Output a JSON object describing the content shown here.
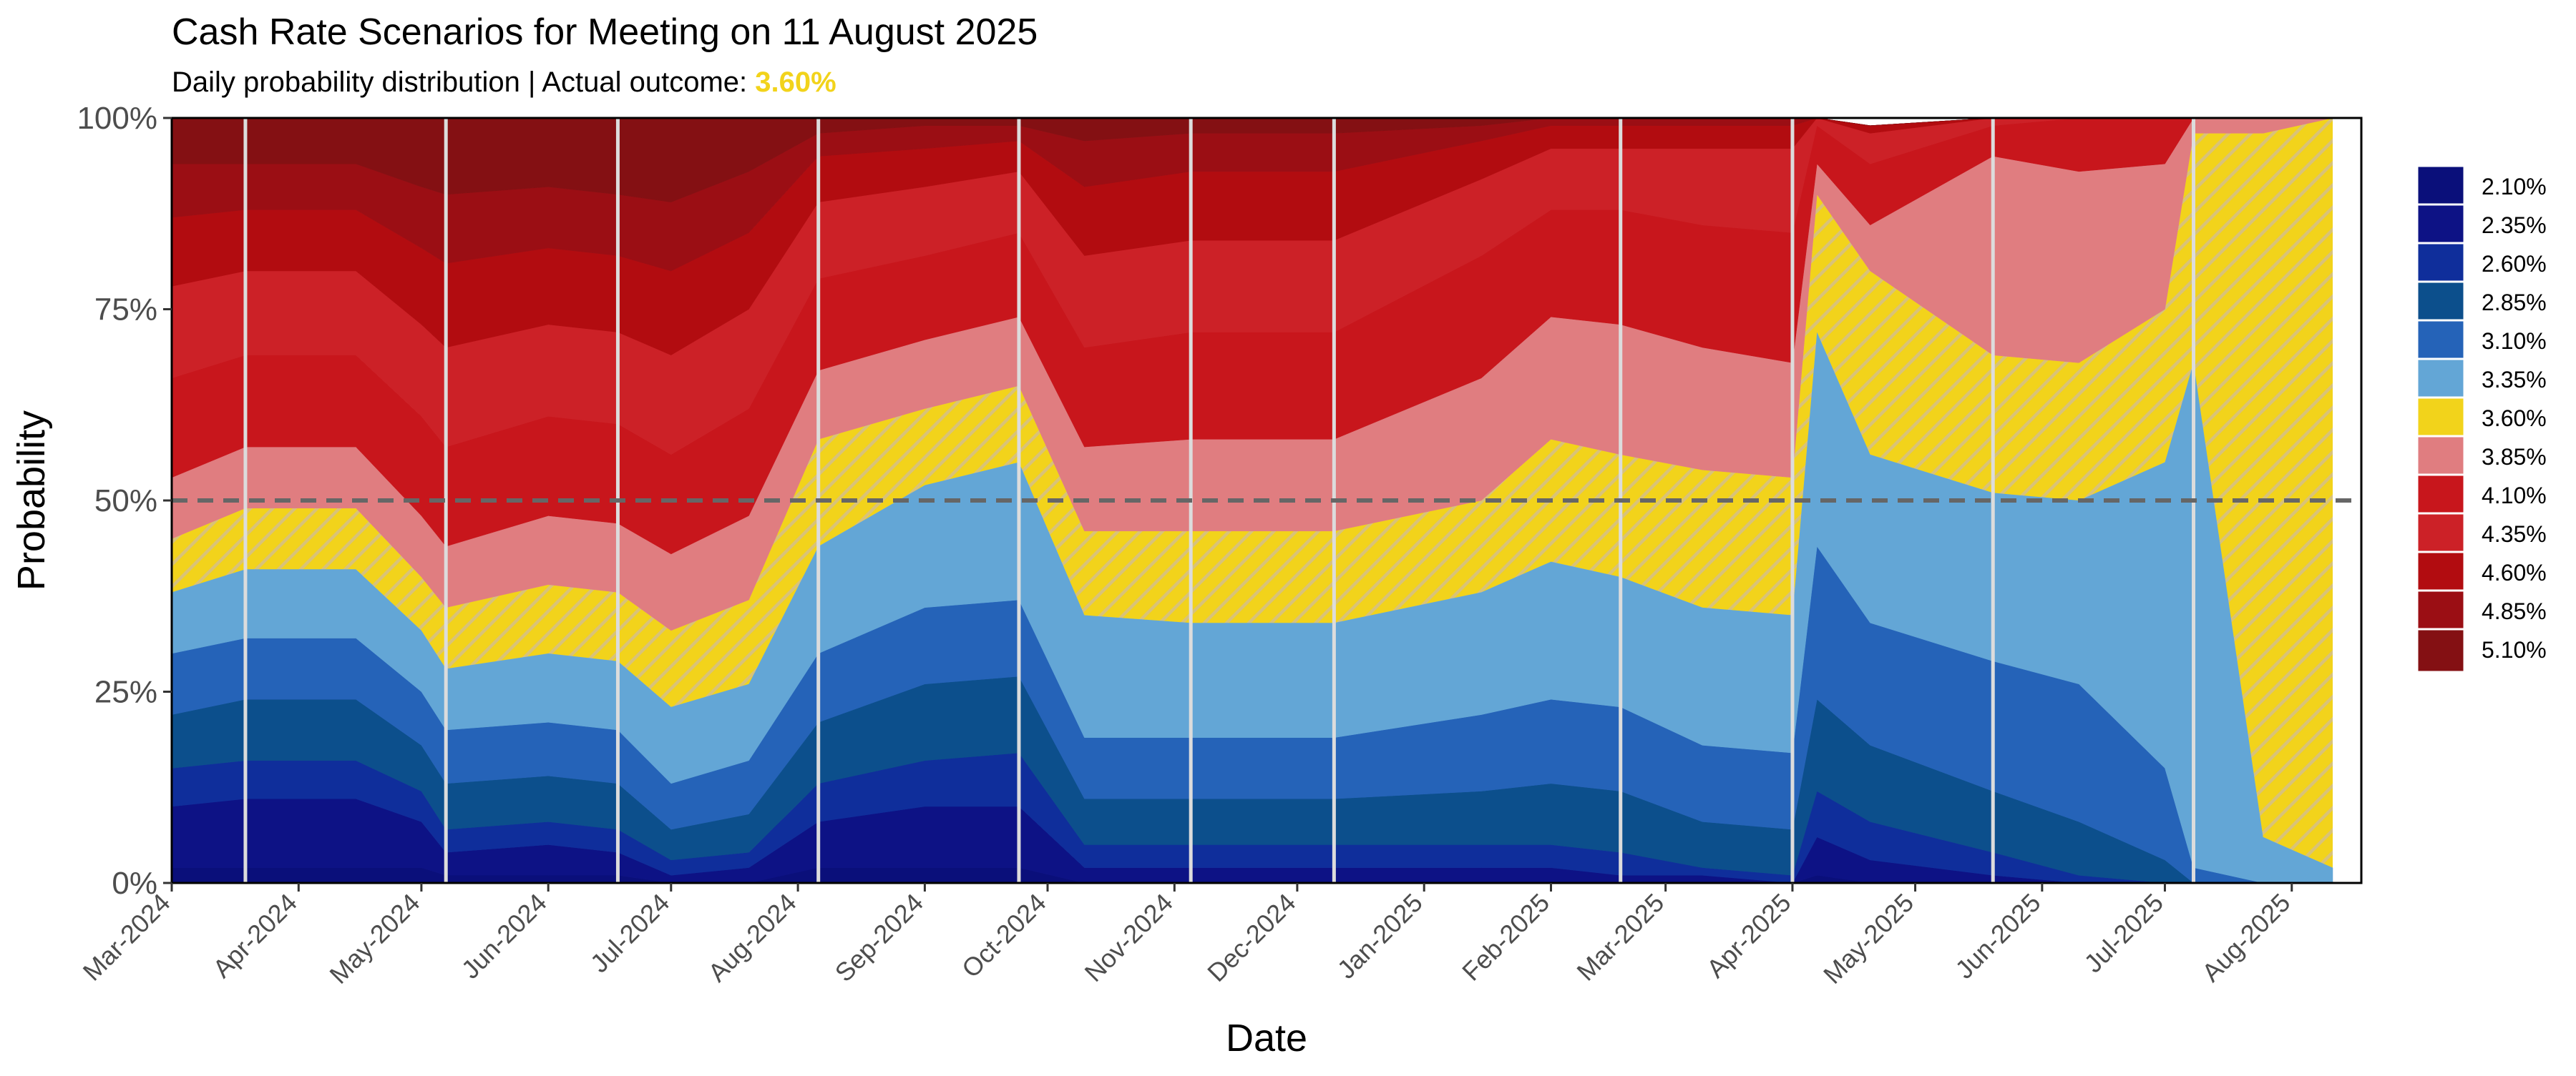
{
  "title": "Cash Rate Scenarios for Meeting on 11 August 2025",
  "subtitle_prefix": "Daily probability distribution | Actual outcome: ",
  "subtitle_highlight": "3.60%",
  "chart_data": {
    "type": "area",
    "stacked": true,
    "xlabel": "Date",
    "ylabel": "Probability",
    "xlim": [
      "2024-03-01",
      "2025-08-18"
    ],
    "ylim": [
      0,
      100
    ],
    "y_ticks": [
      "0%",
      "25%",
      "50%",
      "75%",
      "100%"
    ],
    "x_tick_labels": [
      "Mar-2024",
      "Apr-2024",
      "May-2024",
      "Jun-2024",
      "Jul-2024",
      "Aug-2024",
      "Sep-2024",
      "Oct-2024",
      "Nov-2024",
      "Dec-2024",
      "Jan-2025",
      "Feb-2025",
      "Mar-2025",
      "Apr-2025",
      "May-2025",
      "Jun-2025",
      "Jul-2025",
      "Aug-2025"
    ],
    "x_tick_dates": [
      "2024-03-01",
      "2024-04-01",
      "2024-05-01",
      "2024-06-01",
      "2024-07-01",
      "2024-08-01",
      "2024-09-01",
      "2024-10-01",
      "2024-11-01",
      "2024-12-01",
      "2025-01-01",
      "2025-02-01",
      "2025-03-01",
      "2025-04-01",
      "2025-05-01",
      "2025-06-01",
      "2025-07-01",
      "2025-08-01"
    ],
    "reference_line": {
      "y": 50,
      "style": "dashed",
      "color": "#666666"
    },
    "meeting_dates": [
      "2024-03-19",
      "2024-05-07",
      "2024-06-18",
      "2024-08-06",
      "2024-09-24",
      "2024-11-05",
      "2024-12-10",
      "2025-02-18",
      "2025-04-01",
      "2025-05-20",
      "2025-07-08"
    ],
    "highlight_series": "3.60%",
    "highlight_color": "#f2d31b",
    "legend_position": "right",
    "dates": [
      "2024-03-01",
      "2024-03-19",
      "2024-04-15",
      "2024-05-01",
      "2024-05-07",
      "2024-06-01",
      "2024-06-18",
      "2024-07-01",
      "2024-07-20",
      "2024-08-06",
      "2024-09-01",
      "2024-09-24",
      "2024-10-10",
      "2024-11-05",
      "2024-12-10",
      "2025-01-15",
      "2025-02-01",
      "2025-02-18",
      "2025-03-10",
      "2025-04-01",
      "2025-04-07",
      "2025-04-20",
      "2025-05-20",
      "2025-06-10",
      "2025-07-01",
      "2025-07-08",
      "2025-07-25",
      "2025-08-11"
    ],
    "series": [
      {
        "name": "2.10%",
        "color": "#0a0f7a",
        "values": [
          2,
          2,
          2,
          2,
          1,
          1,
          1,
          0,
          0,
          2,
          2,
          2,
          0,
          0,
          0,
          0,
          0,
          0,
          0,
          0,
          1,
          0,
          0,
          0,
          0,
          0,
          0,
          0
        ]
      },
      {
        "name": "2.35%",
        "color": "#0d1285",
        "values": [
          8,
          9,
          9,
          6,
          3,
          4,
          3,
          1,
          2,
          6,
          8,
          8,
          2,
          2,
          2,
          2,
          2,
          1,
          1,
          0,
          5,
          3,
          1,
          0,
          0,
          0,
          0,
          0
        ]
      },
      {
        "name": "2.60%",
        "color": "#0f2e9b",
        "values": [
          5,
          5,
          5,
          4,
          3,
          3,
          3,
          2,
          2,
          5,
          6,
          7,
          3,
          3,
          3,
          3,
          3,
          3,
          1,
          1,
          6,
          5,
          3,
          1,
          0,
          0,
          0,
          0
        ]
      },
      {
        "name": "2.85%",
        "color": "#0c4f8c",
        "values": [
          7,
          8,
          8,
          6,
          6,
          6,
          6,
          4,
          5,
          8,
          10,
          10,
          6,
          6,
          6,
          7,
          8,
          8,
          6,
          6,
          12,
          10,
          8,
          7,
          3,
          0,
          0,
          0
        ]
      },
      {
        "name": "3.10%",
        "color": "#2563b8",
        "values": [
          8,
          8,
          8,
          7,
          7,
          7,
          7,
          6,
          7,
          9,
          10,
          10,
          8,
          8,
          8,
          10,
          11,
          11,
          10,
          10,
          20,
          16,
          17,
          18,
          12,
          2,
          0,
          0
        ]
      },
      {
        "name": "3.35%",
        "color": "#63a6d6",
        "values": [
          8,
          9,
          9,
          8,
          8,
          9,
          9,
          10,
          10,
          14,
          16,
          18,
          16,
          15,
          15,
          16,
          18,
          17,
          18,
          18,
          28,
          22,
          22,
          24,
          40,
          66,
          6,
          2
        ]
      },
      {
        "name": "3.60%",
        "color": "#f2d31b",
        "values": [
          7,
          8,
          8,
          7,
          8,
          9,
          9,
          10,
          11,
          14,
          10,
          10,
          11,
          12,
          12,
          12,
          16,
          16,
          18,
          18,
          18,
          24,
          18,
          18,
          20,
          30,
          92,
          98
        ]
      },
      {
        "name": "3.85%",
        "color": "#e07d80",
        "values": [
          8,
          8,
          8,
          8,
          8,
          9,
          9,
          10,
          11,
          9,
          9,
          9,
          11,
          12,
          12,
          16,
          16,
          17,
          16,
          15,
          4,
          6,
          26,
          25,
          19,
          2,
          2,
          0
        ]
      },
      {
        "name": "4.10%",
        "color": "#c8161c",
        "values": [
          13,
          12,
          12,
          13,
          13,
          13,
          13,
          13,
          14,
          12,
          11,
          11,
          13,
          14,
          14,
          16,
          14,
          15,
          16,
          17,
          5,
          8,
          4,
          7,
          6,
          0,
          0,
          0
        ]
      },
      {
        "name": "4.35%",
        "color": "#cc2127",
        "values": [
          12,
          11,
          11,
          12,
          13,
          12,
          12,
          13,
          13,
          10,
          9,
          8,
          12,
          12,
          12,
          10,
          8,
          8,
          10,
          11,
          1,
          4,
          1,
          0,
          0,
          0,
          0,
          0
        ]
      },
      {
        "name": "4.60%",
        "color": "#b20c10",
        "values": [
          9,
          8,
          8,
          10,
          11,
          10,
          10,
          11,
          10,
          6,
          5,
          4,
          9,
          9,
          9,
          5,
          3,
          3,
          3,
          3,
          0,
          1,
          0,
          0,
          0,
          0,
          0,
          0
        ]
      },
      {
        "name": "4.85%",
        "color": "#9b0e14",
        "values": [
          7,
          6,
          6,
          8,
          9,
          8,
          8,
          9,
          8,
          3,
          3,
          2,
          6,
          5,
          5,
          2,
          1,
          1,
          1,
          1,
          0,
          0,
          0,
          0,
          0,
          0,
          0,
          0
        ]
      },
      {
        "name": "5.10%",
        "color": "#841013",
        "values": [
          6,
          6,
          6,
          9,
          10,
          9,
          10,
          11,
          7,
          2,
          1,
          1,
          3,
          2,
          2,
          1,
          0,
          0,
          0,
          0,
          0,
          0,
          0,
          0,
          0,
          0,
          0,
          0
        ]
      }
    ]
  }
}
